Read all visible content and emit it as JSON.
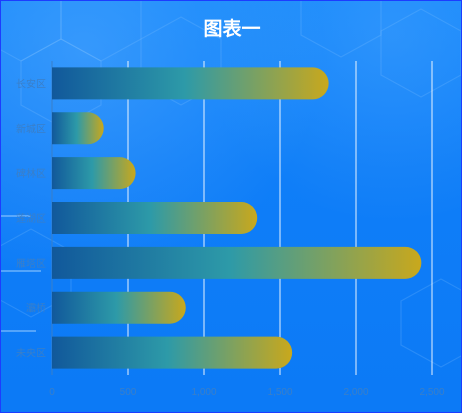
{
  "colors": {
    "background": "#0f7ef8",
    "border": "#1c3cff",
    "title": "#ffffff",
    "axis_label": "#3a7fc8",
    "grid": "#ffffff",
    "bar_gradient": [
      "#11589b",
      "#2d9aa8",
      "#c9a81c"
    ]
  },
  "chart_data": {
    "type": "bar",
    "orientation": "horizontal",
    "title": "图表一",
    "categories": [
      "长安区",
      "新城区",
      "碑林区",
      "莲湖区",
      "雁塔区",
      "灞桥",
      "未央区"
    ],
    "values": [
      1820,
      340,
      550,
      1350,
      2430,
      880,
      1580
    ],
    "xlim": [
      0,
      2500
    ],
    "xticks": [
      0,
      500,
      1000,
      1500,
      2000,
      2500
    ],
    "xtick_labels": [
      "0",
      "500",
      "1,000",
      "1,500",
      "2,000",
      "2,500"
    ],
    "grid": true,
    "legend": false
  }
}
